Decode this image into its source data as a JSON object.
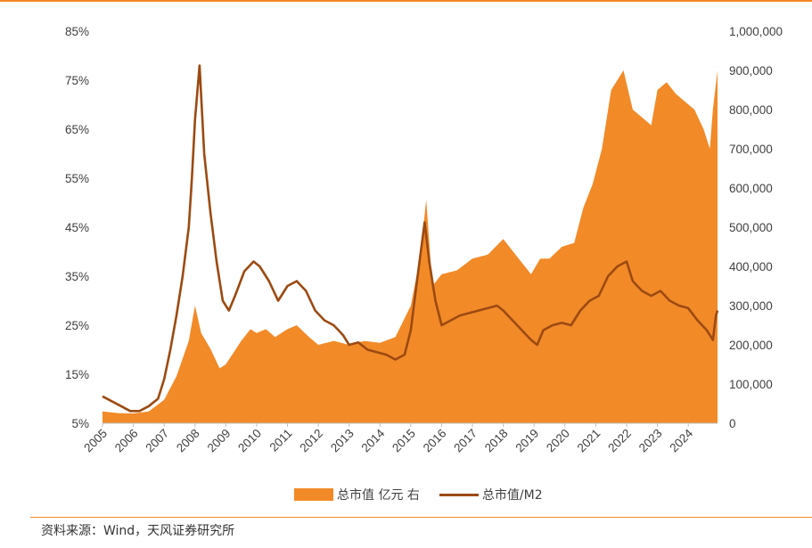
{
  "chart_data": {
    "type": "area+line",
    "x_range": [
      2005,
      2024.95
    ],
    "years": [
      "2005",
      "2006",
      "2007",
      "2008",
      "2009",
      "2010",
      "2011",
      "2012",
      "2013",
      "2014",
      "2015",
      "2016",
      "2017",
      "2018",
      "2019",
      "2020",
      "2021",
      "2022",
      "2023",
      "2024"
    ],
    "y_left": {
      "ticks": [
        "5%",
        "15%",
        "25%",
        "35%",
        "45%",
        "55%",
        "65%",
        "75%",
        "85%"
      ],
      "range": [
        5,
        85
      ]
    },
    "y_right": {
      "ticks": [
        "0",
        "100,000",
        "200,000",
        "300,000",
        "400,000",
        "500,000",
        "600,000",
        "700,000",
        "800,000",
        "900,000",
        "1,000,000"
      ],
      "range": [
        0,
        1000000
      ]
    },
    "series": [
      {
        "name": "总市值 亿元 右",
        "axis": "right",
        "style": "area",
        "color": "#f28a28",
        "points": [
          [
            2005.0,
            30000
          ],
          [
            2005.5,
            26000
          ],
          [
            2006.0,
            25000
          ],
          [
            2006.5,
            30000
          ],
          [
            2007.0,
            60000
          ],
          [
            2007.4,
            120000
          ],
          [
            2007.8,
            210000
          ],
          [
            2008.0,
            300000
          ],
          [
            2008.2,
            230000
          ],
          [
            2008.5,
            190000
          ],
          [
            2008.8,
            140000
          ],
          [
            2009.0,
            150000
          ],
          [
            2009.5,
            210000
          ],
          [
            2009.8,
            240000
          ],
          [
            2010.0,
            230000
          ],
          [
            2010.3,
            240000
          ],
          [
            2010.6,
            220000
          ],
          [
            2011.0,
            240000
          ],
          [
            2011.3,
            250000
          ],
          [
            2011.7,
            220000
          ],
          [
            2012.0,
            200000
          ],
          [
            2012.5,
            210000
          ],
          [
            2013.0,
            200000
          ],
          [
            2013.5,
            210000
          ],
          [
            2014.0,
            205000
          ],
          [
            2014.5,
            220000
          ],
          [
            2015.0,
            300000
          ],
          [
            2015.3,
            420000
          ],
          [
            2015.5,
            570000
          ],
          [
            2015.7,
            350000
          ],
          [
            2016.0,
            380000
          ],
          [
            2016.5,
            390000
          ],
          [
            2017.0,
            420000
          ],
          [
            2017.5,
            430000
          ],
          [
            2018.0,
            470000
          ],
          [
            2018.5,
            420000
          ],
          [
            2018.9,
            380000
          ],
          [
            2019.2,
            420000
          ],
          [
            2019.5,
            420000
          ],
          [
            2019.9,
            450000
          ],
          [
            2020.3,
            460000
          ],
          [
            2020.6,
            550000
          ],
          [
            2020.9,
            610000
          ],
          [
            2021.2,
            700000
          ],
          [
            2021.5,
            850000
          ],
          [
            2021.9,
            900000
          ],
          [
            2022.2,
            800000
          ],
          [
            2022.5,
            780000
          ],
          [
            2022.8,
            760000
          ],
          [
            2023.0,
            850000
          ],
          [
            2023.3,
            870000
          ],
          [
            2023.6,
            840000
          ],
          [
            2023.9,
            820000
          ],
          [
            2024.2,
            800000
          ],
          [
            2024.5,
            750000
          ],
          [
            2024.7,
            700000
          ],
          [
            2024.8,
            800000
          ],
          [
            2024.95,
            900000
          ]
        ]
      },
      {
        "name": "总市值/M2",
        "axis": "left",
        "style": "line",
        "color": "#9c4a12",
        "points": [
          [
            2005.0,
            10.5
          ],
          [
            2005.3,
            9.5
          ],
          [
            2005.6,
            8.5
          ],
          [
            2005.9,
            7.5
          ],
          [
            2006.2,
            7.5
          ],
          [
            2006.5,
            8.5
          ],
          [
            2006.8,
            10.0
          ],
          [
            2007.0,
            14.0
          ],
          [
            2007.2,
            20.0
          ],
          [
            2007.4,
            27.0
          ],
          [
            2007.6,
            35.0
          ],
          [
            2007.8,
            45.0
          ],
          [
            2007.9,
            55.0
          ],
          [
            2008.0,
            67.0
          ],
          [
            2008.15,
            78.0
          ],
          [
            2008.3,
            60.0
          ],
          [
            2008.5,
            48.0
          ],
          [
            2008.7,
            38.0
          ],
          [
            2008.9,
            30.0
          ],
          [
            2009.1,
            28.0
          ],
          [
            2009.3,
            31.0
          ],
          [
            2009.6,
            36.0
          ],
          [
            2009.9,
            38.0
          ],
          [
            2010.1,
            37.0
          ],
          [
            2010.4,
            34.0
          ],
          [
            2010.7,
            30.0
          ],
          [
            2011.0,
            33.0
          ],
          [
            2011.3,
            34.0
          ],
          [
            2011.6,
            32.0
          ],
          [
            2011.9,
            28.0
          ],
          [
            2012.2,
            26.0
          ],
          [
            2012.5,
            25.0
          ],
          [
            2012.8,
            23.0
          ],
          [
            2013.0,
            21.0
          ],
          [
            2013.3,
            21.5
          ],
          [
            2013.6,
            20.0
          ],
          [
            2013.9,
            19.5
          ],
          [
            2014.2,
            19.0
          ],
          [
            2014.5,
            18.0
          ],
          [
            2014.8,
            19.0
          ],
          [
            2015.0,
            24.0
          ],
          [
            2015.2,
            34.0
          ],
          [
            2015.45,
            46.0
          ],
          [
            2015.6,
            38.0
          ],
          [
            2015.8,
            30.0
          ],
          [
            2016.0,
            25.0
          ],
          [
            2016.3,
            26.0
          ],
          [
            2016.6,
            27.0
          ],
          [
            2016.9,
            27.5
          ],
          [
            2017.2,
            28.0
          ],
          [
            2017.5,
            28.5
          ],
          [
            2017.8,
            29.0
          ],
          [
            2018.0,
            28.0
          ],
          [
            2018.3,
            26.0
          ],
          [
            2018.6,
            24.0
          ],
          [
            2018.9,
            22.0
          ],
          [
            2019.1,
            21.0
          ],
          [
            2019.3,
            24.0
          ],
          [
            2019.6,
            25.0
          ],
          [
            2019.9,
            25.5
          ],
          [
            2020.2,
            25.0
          ],
          [
            2020.5,
            28.0
          ],
          [
            2020.8,
            30.0
          ],
          [
            2021.1,
            31.0
          ],
          [
            2021.4,
            35.0
          ],
          [
            2021.7,
            37.0
          ],
          [
            2022.0,
            38.0
          ],
          [
            2022.2,
            34.0
          ],
          [
            2022.5,
            32.0
          ],
          [
            2022.8,
            31.0
          ],
          [
            2023.1,
            32.0
          ],
          [
            2023.4,
            30.0
          ],
          [
            2023.7,
            29.0
          ],
          [
            2024.0,
            28.5
          ],
          [
            2024.3,
            26.0
          ],
          [
            2024.6,
            24.0
          ],
          [
            2024.8,
            22.0
          ],
          [
            2024.9,
            27.0
          ],
          [
            2024.95,
            28.0
          ]
        ]
      }
    ],
    "legend_position": "bottom",
    "grid": false
  },
  "legend": {
    "area_label": "总市值 亿元 右",
    "line_label": "总市值/M2",
    "area_color": "#f28a28",
    "line_color": "#9c4a12"
  },
  "source_text": "资料来源：Wind，天风证券研究所",
  "accent_color": "#f08a24"
}
